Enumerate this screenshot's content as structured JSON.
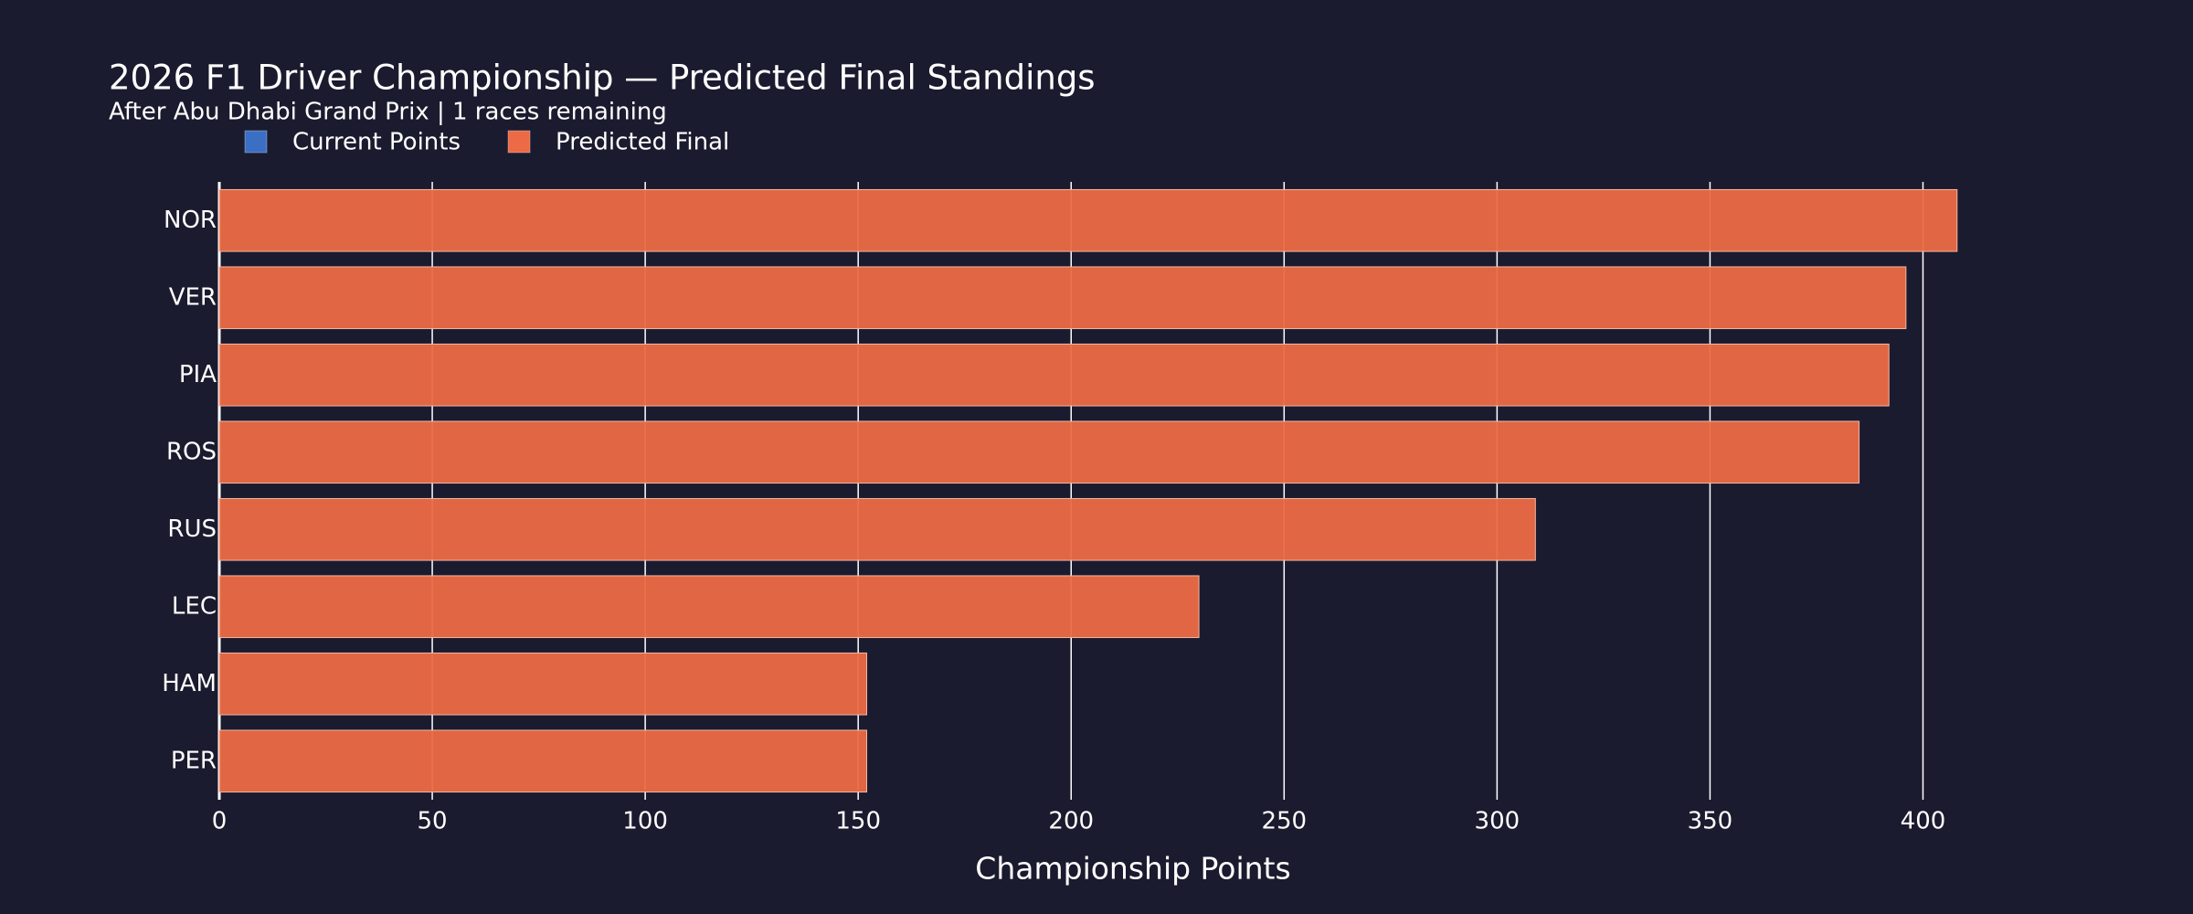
{
  "chart_data": {
    "type": "hbar",
    "title": "2026 F1 Driver Championship — Predicted Final Standings",
    "subtitle": "After Abu Dhabi Grand Prix | 1 races remaining",
    "x_label": "Championship Points",
    "categories": [
      "NOR",
      "VER",
      "PIA",
      "ROS",
      "RUS",
      "LEC",
      "HAM",
      "PER"
    ],
    "series": [
      {
        "name": "Current Points",
        "color": "#3a6fc4",
        "values": [
          null,
          null,
          null,
          null,
          null,
          null,
          null,
          null
        ]
      },
      {
        "name": "Predicted Final",
        "color": "#ec6a45",
        "values": [
          408,
          396,
          392,
          385,
          309,
          230,
          152,
          152
        ]
      }
    ],
    "xlim": [
      0,
      428
    ],
    "xticks": [
      0,
      50,
      100,
      150,
      200,
      250,
      300,
      350,
      400
    ],
    "grid": true,
    "legend": "top-left"
  }
}
